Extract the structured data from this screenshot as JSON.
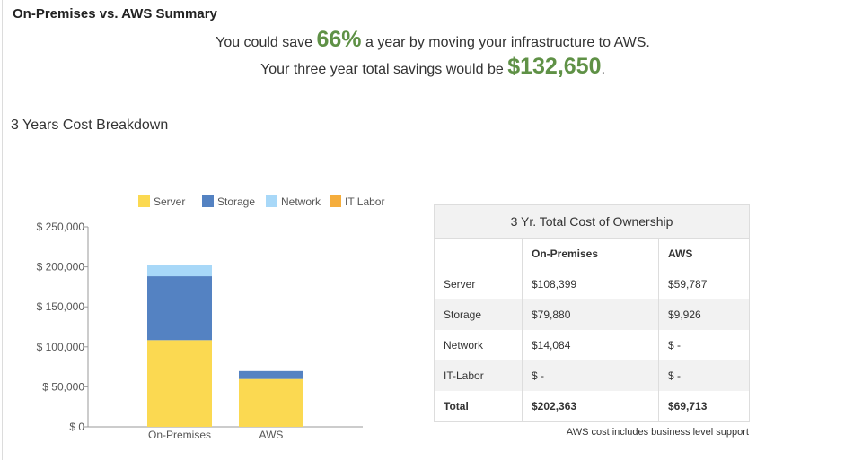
{
  "summary": {
    "title": "On-Premises vs. AWS Summary",
    "line1_before": "You could save",
    "line1_value": "66%",
    "line1_after": "a year by moving your infrastructure to AWS.",
    "line2_before": "Your three year total savings would be",
    "line2_value": "$132,650",
    "line2_after": "."
  },
  "section_title": "3 Years Cost Breakdown",
  "chart_data": {
    "type": "bar",
    "stacked": true,
    "categories": [
      "On-Premises",
      "AWS"
    ],
    "series": [
      {
        "name": "Server",
        "color": "#fbd951",
        "values": [
          108399,
          59787
        ]
      },
      {
        "name": "Storage",
        "color": "#5482c2",
        "values": [
          79880,
          9926
        ]
      },
      {
        "name": "Network",
        "color": "#a8d8f8",
        "values": [
          14084,
          0
        ]
      },
      {
        "name": "IT Labor",
        "color": "#f5ad3c",
        "values": [
          0,
          0
        ]
      }
    ],
    "ylim": [
      0,
      250000
    ],
    "yticks": [
      0,
      50000,
      100000,
      150000,
      200000,
      250000
    ],
    "ytick_labels": [
      "$ 0",
      "$ 50,000",
      "$ 100,000",
      "$ 150,000",
      "$ 200,000",
      "$ 250,000"
    ],
    "legend_position": "top",
    "grid": false
  },
  "tco_table": {
    "title": "3 Yr. Total Cost of Ownership",
    "headers": [
      "",
      "On-Premises",
      "AWS"
    ],
    "rows": [
      [
        "Server",
        "$108,399",
        "$59,787"
      ],
      [
        "Storage",
        "$79,880",
        "$9,926"
      ],
      [
        "Network",
        "$14,084",
        "$ -"
      ],
      [
        "IT-Labor",
        "$ -",
        "$ -"
      ],
      [
        "Total",
        "$202,363",
        "$69,713"
      ]
    ],
    "footnote": "AWS cost includes business level support"
  }
}
